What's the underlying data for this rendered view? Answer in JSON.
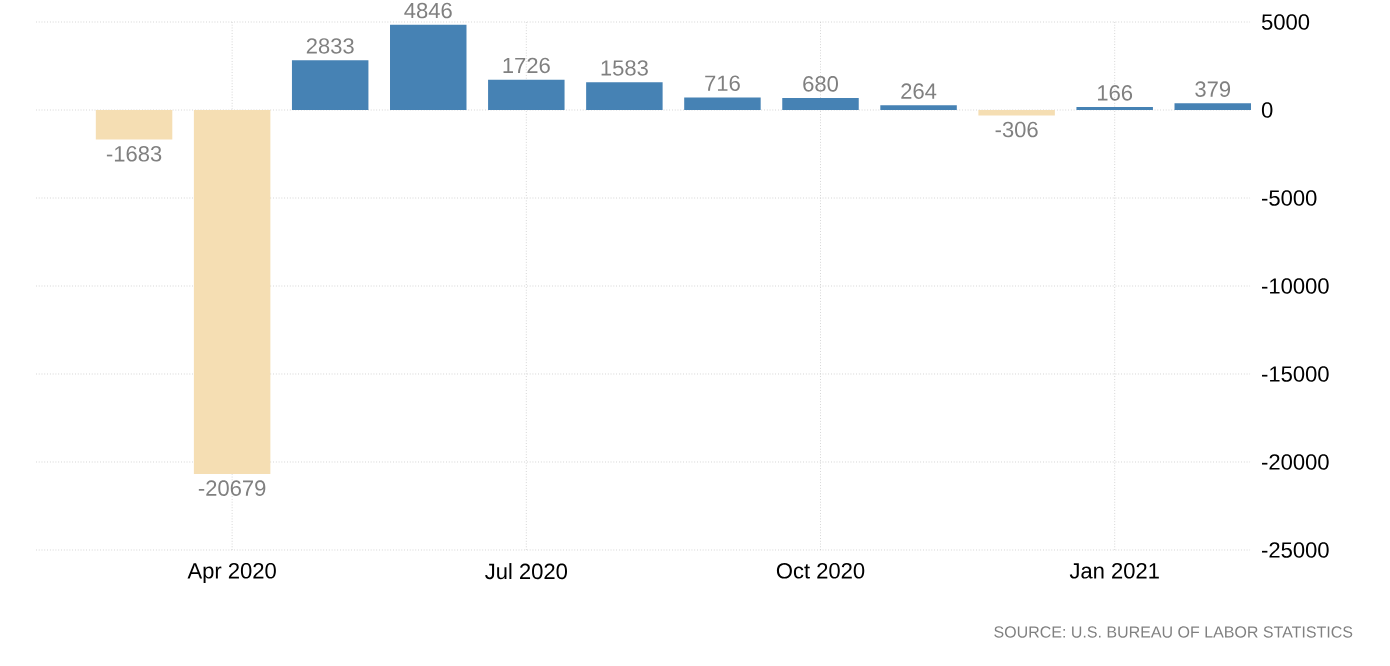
{
  "chart_data": {
    "type": "bar",
    "categories": [
      null,
      "Apr 2020",
      null,
      null,
      "Jul 2020",
      null,
      null,
      "Oct 2020",
      null,
      null,
      "Jan 2021",
      null
    ],
    "values": [
      -1683,
      -20679,
      2833,
      4846,
      1726,
      1583,
      716,
      680,
      264,
      -306,
      166,
      379
    ],
    "colors": [
      "#f5deb3",
      "#f5deb3",
      "#4682b4",
      "#4682b4",
      "#4682b4",
      "#4682b4",
      "#4682b4",
      "#4682b4",
      "#4682b4",
      "#f5deb3",
      "#4682b4",
      "#4682b4"
    ],
    "ylim": [
      -25000,
      5000
    ],
    "yticks": [
      -25000,
      -20000,
      -15000,
      -10000,
      -5000,
      0,
      5000
    ],
    "grid": true,
    "data_labels": true,
    "annotations": [
      "SOURCE: U.S. BUREAU OF LABOR STATISTICS"
    ]
  }
}
